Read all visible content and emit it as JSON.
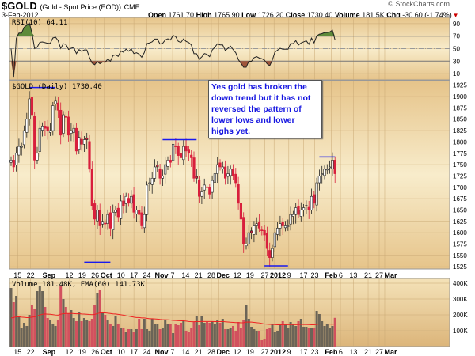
{
  "header": {
    "symbol": "$GOLD",
    "description": "(Gold - Spot Price (EOD))",
    "exchange": "CME",
    "date": "3-Feb-2012",
    "brand": "© StockCharts.com",
    "open_label": "Open",
    "open": "1761.70",
    "high_label": "High",
    "high": "1765.90",
    "low_label": "Low",
    "low": "1726.20",
    "close_label": "Close",
    "close": "1730.40",
    "volume_label": "Volume",
    "volume": "181.5K",
    "chg_label": "Chg",
    "chg": "-30.60 (-1.74%)"
  },
  "annotation": "Yes gold has broken the down trend but it has not reversed the pattern of lower lows and lower highs yet.",
  "colors": {
    "up": "#ffffff",
    "down": "#d81f3c",
    "panel": "#e8c98f",
    "line": "#222222",
    "ema": "#ee2222",
    "trendline": "#1a1aee",
    "vol_up": "#6b6457",
    "vol_down": "#d2515e"
  },
  "chart_data": [
    {
      "type": "line",
      "title": "RSI(10) 64.11",
      "ylim": [
        0,
        100
      ],
      "ticks": [
        "90",
        "70",
        "50",
        "30",
        "10"
      ],
      "tick_values": [
        90,
        70,
        50,
        30,
        10
      ],
      "overbought": 70,
      "oversold": 30,
      "last": 64.11
    },
    {
      "type": "candlestick",
      "title": "$GOLD (Daily) 1730.40",
      "ylim": [
        1520,
        1935
      ],
      "ticks": [
        "1925",
        "1900",
        "1875",
        "1850",
        "1825",
        "1800",
        "1775",
        "1750",
        "1725",
        "1700",
        "1675",
        "1650",
        "1625",
        "1600",
        "1575",
        "1550",
        "1525"
      ],
      "tick_values": [
        1925,
        1900,
        1875,
        1850,
        1825,
        1800,
        1775,
        1750,
        1725,
        1700,
        1675,
        1650,
        1625,
        1600,
        1575,
        1550,
        1525
      ],
      "closes": [
        1760,
        1745,
        1775,
        1790,
        1790,
        1825,
        1850,
        1895,
        1860,
        1760,
        1775,
        1830,
        1835,
        1830,
        1825,
        1825,
        1880,
        1890,
        1870,
        1815,
        1860,
        1855,
        1815,
        1825,
        1830,
        1780,
        1810,
        1795,
        1805,
        1805,
        1740,
        1660,
        1630,
        1650,
        1615,
        1625,
        1620,
        1640,
        1610,
        1645,
        1650,
        1635,
        1670,
        1660,
        1680,
        1665,
        1680,
        1645,
        1650,
        1640,
        1615,
        1640,
        1705,
        1710,
        1720,
        1745,
        1745,
        1720,
        1725,
        1750,
        1760,
        1755,
        1795,
        1790,
        1770,
        1765,
        1790,
        1780,
        1775,
        1765,
        1720,
        1720,
        1680,
        1690,
        1705,
        1700,
        1685,
        1715,
        1730,
        1750,
        1745,
        1745,
        1720,
        1730,
        1740,
        1725,
        1710,
        1665,
        1630,
        1575,
        1575,
        1600,
        1600,
        1615,
        1620,
        1610,
        1605,
        1595,
        1565,
        1545,
        1565,
        1600,
        1610,
        1620,
        1615,
        1615,
        1615,
        1640,
        1640,
        1655,
        1640,
        1650,
        1655,
        1660,
        1650,
        1680,
        1665,
        1710,
        1725,
        1730,
        1740,
        1740,
        1745,
        1760,
        1730
      ],
      "trendlines": [
        {
          "price": 1920,
          "from": 7,
          "to": 17
        },
        {
          "price": 1535,
          "from": 28,
          "to": 38
        },
        {
          "price": 1805,
          "from": 58,
          "to": 71
        },
        {
          "price": 1527,
          "from": 97,
          "to": 106
        },
        {
          "price": 1767,
          "from": 118,
          "to": 124
        }
      ]
    },
    {
      "type": "bar",
      "title": "Volume 181.48K, EMA(60) 141.73K",
      "ylim": [
        0,
        430
      ],
      "unit": "K",
      "ticks": [
        "400K",
        "300K",
        "200K",
        "100K"
      ],
      "tick_values": [
        400,
        300,
        200,
        100
      ],
      "values": [
        370,
        280,
        320,
        190,
        120,
        150,
        130,
        200,
        260,
        240,
        350,
        380,
        350,
        250,
        180,
        170,
        140,
        130,
        170,
        380,
        300,
        250,
        210,
        230,
        180,
        160,
        220,
        160,
        180,
        170,
        160,
        175,
        260,
        340,
        360,
        210,
        200,
        170,
        140,
        130,
        190,
        140,
        120,
        120,
        90,
        110,
        110,
        90,
        110,
        175,
        110,
        175,
        110,
        100,
        175,
        140,
        145,
        110,
        120,
        165,
        140,
        145,
        85,
        140,
        135,
        150,
        160,
        100,
        90,
        120,
        155,
        195,
        135,
        190,
        150,
        155,
        150,
        160,
        140,
        165,
        150,
        175,
        110,
        110,
        115,
        130,
        100,
        155,
        120,
        170,
        260,
        175,
        125,
        110,
        95,
        100,
        40,
        45,
        110,
        115,
        140,
        90,
        100,
        145,
        160,
        145,
        120,
        155,
        140,
        130,
        160,
        175,
        125,
        125,
        120,
        115,
        120,
        225,
        205,
        160,
        130,
        140,
        120,
        130,
        181
      ]
    },
    {
      "type": "axis",
      "x_start": "2011-08-11",
      "x_end": "2011-03-05",
      "xticks": [
        {
          "label": "15",
          "date": "2011-08-15"
        },
        {
          "label": "22",
          "date": "2011-08-22"
        },
        {
          "label": "Sep",
          "date": "2011-09-01",
          "bold": true
        },
        {
          "label": "12",
          "date": "2011-09-12"
        },
        {
          "label": "19",
          "date": "2011-09-19"
        },
        {
          "label": "26",
          "date": "2011-09-26"
        },
        {
          "label": "Oct",
          "date": "2011-10-01",
          "bold": true
        },
        {
          "label": "10",
          "date": "2011-10-10"
        },
        {
          "label": "17",
          "date": "2011-10-17"
        },
        {
          "label": "24",
          "date": "2011-10-24"
        },
        {
          "label": "Nov",
          "date": "2011-11-01",
          "bold": true
        },
        {
          "label": "7",
          "date": "2011-11-07"
        },
        {
          "label": "14",
          "date": "2011-11-14"
        },
        {
          "label": "21",
          "date": "2011-11-21"
        },
        {
          "label": "28",
          "date": "2011-11-28"
        },
        {
          "label": "Dec",
          "date": "2011-12-02",
          "bold": true
        },
        {
          "label": "12",
          "date": "2011-12-12"
        },
        {
          "label": "19",
          "date": "2011-12-19"
        },
        {
          "label": "27",
          "date": "2011-12-27"
        },
        {
          "label": "2012",
          "date": "2012-01-01",
          "bold": true
        },
        {
          "label": "9",
          "date": "2012-01-09"
        },
        {
          "label": "17",
          "date": "2012-01-17"
        },
        {
          "label": "23",
          "date": "2012-01-23"
        },
        {
          "label": "Feb",
          "date": "2012-02-01",
          "bold": true
        },
        {
          "label": "6",
          "date": "2012-02-06"
        },
        {
          "label": "13",
          "date": "2012-02-13"
        },
        {
          "label": "21",
          "date": "2012-02-21"
        },
        {
          "label": "27",
          "date": "2012-02-27"
        },
        {
          "label": "Mar",
          "date": "2012-03-01",
          "bold": true
        }
      ]
    }
  ]
}
